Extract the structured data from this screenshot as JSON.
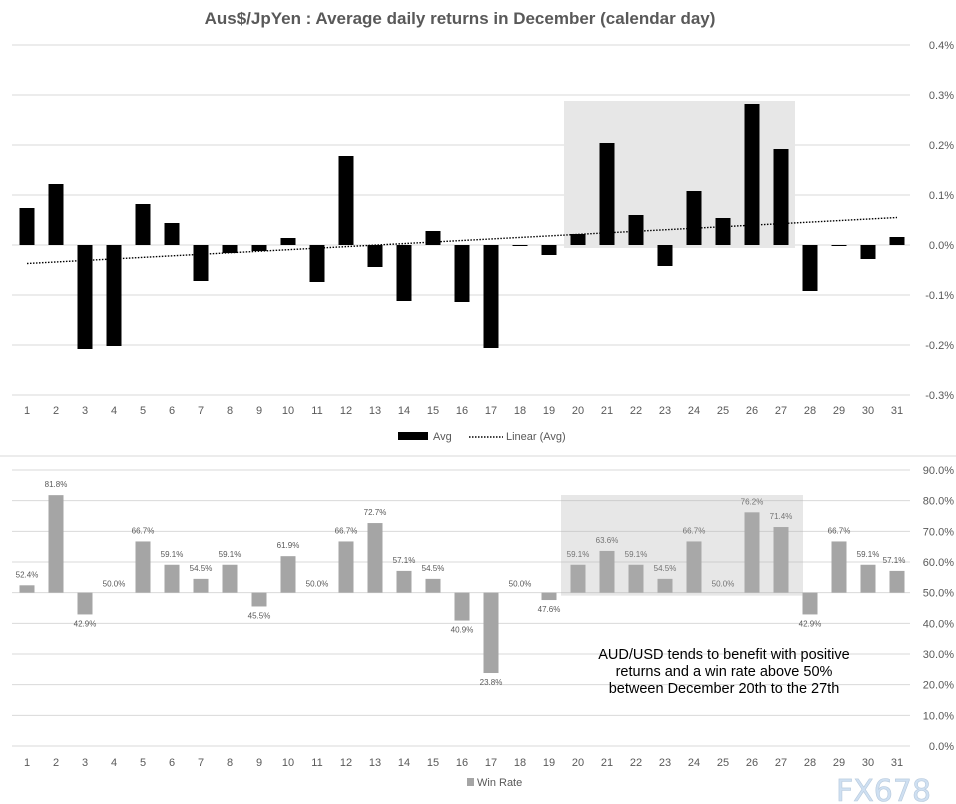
{
  "chart_data": [
    {
      "type": "bar",
      "title": "Aus$/JpYen : Average daily returns in December (calendar day)",
      "categories": [
        "1",
        "2",
        "3",
        "4",
        "5",
        "6",
        "7",
        "8",
        "9",
        "10",
        "11",
        "12",
        "13",
        "14",
        "15",
        "16",
        "17",
        "18",
        "19",
        "20",
        "21",
        "22",
        "23",
        "24",
        "25",
        "26",
        "27",
        "28",
        "29",
        "30",
        "31"
      ],
      "series": [
        {
          "name": "Avg",
          "color": "#000000",
          "values": [
            0.074,
            0.122,
            -0.208,
            -0.202,
            0.082,
            0.044,
            -0.072,
            -0.016,
            -0.012,
            0.014,
            -0.074,
            0.178,
            -0.044,
            -0.112,
            0.028,
            -0.114,
            -0.206,
            0.0,
            -0.02,
            0.022,
            0.204,
            0.06,
            -0.042,
            0.108,
            0.054,
            0.282,
            0.192,
            -0.092,
            -0.002,
            -0.028,
            0.016
          ]
        }
      ],
      "trendline": {
        "name": "Linear (Avg)",
        "type": "linear",
        "start": -0.037,
        "end": 0.055
      },
      "ylim": [
        -0.3,
        0.4
      ],
      "yticks": [
        "0.4%",
        "0.3%",
        "0.2%",
        "0.1%",
        "0.0%",
        "-0.1%",
        "-0.2%",
        "-0.3%"
      ],
      "y_axis_position": "right",
      "highlight": {
        "from": "20",
        "to": "27",
        "color": "#e7e7e7"
      },
      "grid": true,
      "legend": "bottom"
    },
    {
      "type": "bar",
      "categories": [
        "1",
        "2",
        "3",
        "4",
        "5",
        "6",
        "7",
        "8",
        "9",
        "10",
        "11",
        "12",
        "13",
        "14",
        "15",
        "16",
        "17",
        "18",
        "19",
        "20",
        "21",
        "22",
        "23",
        "24",
        "25",
        "26",
        "27",
        "28",
        "29",
        "30",
        "31"
      ],
      "baseline": 50,
      "series": [
        {
          "name": "Win Rate",
          "color": "#a5a5a5",
          "values": [
            52.4,
            81.8,
            42.9,
            50.0,
            66.7,
            59.1,
            54.5,
            59.1,
            45.5,
            61.9,
            50.0,
            66.7,
            72.7,
            57.1,
            54.5,
            40.9,
            23.8,
            50.0,
            47.6,
            59.1,
            63.6,
            59.1,
            54.5,
            66.7,
            50.0,
            76.2,
            71.4,
            42.9,
            66.7,
            59.1,
            57.1
          ],
          "labels": [
            "52.4%",
            "81.8%",
            "42.9%",
            "50.0%",
            "66.7%",
            "59.1%",
            "54.5%",
            "59.1%",
            "45.5%",
            "61.9%",
            "50.0%",
            "66.7%",
            "72.7%",
            "57.1%",
            "54.5%",
            "40.9%",
            "23.8%",
            "50.0%",
            "47.6%",
            "59.1%",
            "63.6%",
            "59.1%",
            "54.5%",
            "66.7%",
            "50.0%",
            "76.2%",
            "71.4%",
            "42.9%",
            "66.7%",
            "59.1%",
            "57.1%"
          ]
        }
      ],
      "ylim": [
        0,
        90
      ],
      "yticks": [
        "90.0%",
        "80.0%",
        "70.0%",
        "60.0%",
        "50.0%",
        "40.0%",
        "30.0%",
        "20.0%",
        "10.0%",
        "0.0%"
      ],
      "y_axis_position": "right",
      "highlight": {
        "from": "20",
        "to": "27",
        "color": "#e0e0e0"
      },
      "annotation": [
        "AUD/USD tends to benefit with positive",
        "returns and a win rate above 50%",
        "between December 20th to the 27th"
      ],
      "grid": true,
      "legend": "bottom"
    }
  ],
  "watermark": "FX678"
}
